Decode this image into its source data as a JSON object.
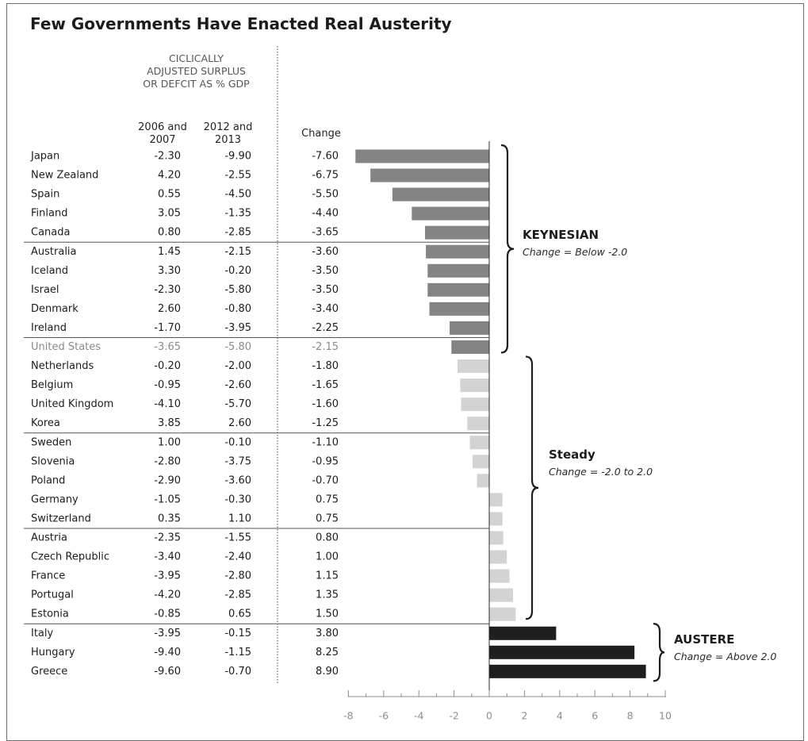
{
  "title": "Few Governments Have Enacted Real Austerity",
  "headers": {
    "group": [
      "CICLICALLY",
      "ADJUSTED SURPLUS",
      "OR DEFCIT AS % GDP"
    ],
    "col_2006": [
      "2006 and",
      "2007"
    ],
    "col_2012": [
      "2012  and",
      "2013"
    ],
    "col_change": "Change"
  },
  "braces": {
    "keynesian": {
      "title": "KEYNESIAN",
      "subtitle": "Change = Below -2.0"
    },
    "steady": {
      "title": "Steady",
      "subtitle": "Change = -2.0 to 2.0"
    },
    "austere": {
      "title": "AUSTERE",
      "subtitle": "Change = Above 2.0"
    }
  },
  "colors": {
    "keynesian": "#848484",
    "steady": "#d3d3d3",
    "austere": "#1f1f1f",
    "text": "#1c1c1c",
    "highlight_text": "#8a8a8a",
    "rule": "#555555"
  },
  "chart_data": {
    "type": "bar",
    "orientation": "horizontal",
    "xlim": [
      -8,
      10
    ],
    "xticks": [
      "-8",
      "-6",
      "-4",
      "-2",
      "0",
      "2",
      "4",
      "6",
      "8",
      "10"
    ],
    "rows": [
      {
        "country": "Japan",
        "v2006_2007": "-2.30",
        "v2012_2013": "-9.90",
        "change": "-7.60",
        "value": -7.6,
        "category": "keynesian"
      },
      {
        "country": "New Zealand",
        "v2006_2007": "4.20",
        "v2012_2013": "-2.55",
        "change": "-6.75",
        "value": -6.75,
        "category": "keynesian"
      },
      {
        "country": "Spain",
        "v2006_2007": "0.55",
        "v2012_2013": "-4.50",
        "change": "-5.50",
        "value": -5.5,
        "category": "keynesian"
      },
      {
        "country": "Finland",
        "v2006_2007": "3.05",
        "v2012_2013": "-1.35",
        "change": "-4.40",
        "value": -4.4,
        "category": "keynesian"
      },
      {
        "country": "Canada",
        "v2006_2007": "0.80",
        "v2012_2013": "-2.85",
        "change": "-3.65",
        "value": -3.65,
        "category": "keynesian"
      },
      {
        "country": "Australia",
        "v2006_2007": "1.45",
        "v2012_2013": "-2.15",
        "change": "-3.60",
        "value": -3.6,
        "category": "keynesian"
      },
      {
        "country": "Iceland",
        "v2006_2007": "3.30",
        "v2012_2013": "-0.20",
        "change": "-3.50",
        "value": -3.5,
        "category": "keynesian"
      },
      {
        "country": "Israel",
        "v2006_2007": "-2.30",
        "v2012_2013": "-5.80",
        "change": "-3.50",
        "value": -3.5,
        "category": "keynesian"
      },
      {
        "country": "Denmark",
        "v2006_2007": "2.60",
        "v2012_2013": "-0.80",
        "change": "-3.40",
        "value": -3.4,
        "category": "keynesian"
      },
      {
        "country": "Ireland",
        "v2006_2007": "-1.70",
        "v2012_2013": "-3.95",
        "change": "-2.25",
        "value": -2.25,
        "category": "keynesian"
      },
      {
        "country": "United States",
        "v2006_2007": "-3.65",
        "v2012_2013": "-5.80",
        "change": "-2.15",
        "value": -2.15,
        "category": "keynesian",
        "highlight": true
      },
      {
        "country": "Netherlands",
        "v2006_2007": "-0.20",
        "v2012_2013": "-2.00",
        "change": "-1.80",
        "value": -1.8,
        "category": "steady"
      },
      {
        "country": "Belgium",
        "v2006_2007": "-0.95",
        "v2012_2013": "-2.60",
        "change": "-1.65",
        "value": -1.65,
        "category": "steady"
      },
      {
        "country": "United Kingdom",
        "v2006_2007": "-4.10",
        "v2012_2013": "-5.70",
        "change": "-1.60",
        "value": -1.6,
        "category": "steady"
      },
      {
        "country": "Korea",
        "v2006_2007": "3.85",
        "v2012_2013": "2.60",
        "change": "-1.25",
        "value": -1.25,
        "category": "steady"
      },
      {
        "country": "Sweden",
        "v2006_2007": "1.00",
        "v2012_2013": "-0.10",
        "change": "-1.10",
        "value": -1.1,
        "category": "steady"
      },
      {
        "country": "Slovenia",
        "v2006_2007": "-2.80",
        "v2012_2013": "-3.75",
        "change": "-0.95",
        "value": -0.95,
        "category": "steady"
      },
      {
        "country": "Poland",
        "v2006_2007": "-2.90",
        "v2012_2013": "-3.60",
        "change": "-0.70",
        "value": -0.7,
        "category": "steady"
      },
      {
        "country": "Germany",
        "v2006_2007": "-1.05",
        "v2012_2013": "-0.30",
        "change": "0.75",
        "value": 0.75,
        "category": "steady"
      },
      {
        "country": "Switzerland",
        "v2006_2007": "0.35",
        "v2012_2013": "1.10",
        "change": "0.75",
        "value": 0.75,
        "category": "steady"
      },
      {
        "country": "Austria",
        "v2006_2007": "-2.35",
        "v2012_2013": "-1.55",
        "change": "0.80",
        "value": 0.8,
        "category": "steady"
      },
      {
        "country": "Czech Republic",
        "v2006_2007": "-3.40",
        "v2012_2013": "-2.40",
        "change": "1.00",
        "value": 1.0,
        "category": "steady"
      },
      {
        "country": "France",
        "v2006_2007": "-3.95",
        "v2012_2013": "-2.80",
        "change": "1.15",
        "value": 1.15,
        "category": "steady"
      },
      {
        "country": "Portugal",
        "v2006_2007": "-4.20",
        "v2012_2013": "-2.85",
        "change": "1.35",
        "value": 1.35,
        "category": "steady"
      },
      {
        "country": "Estonia",
        "v2006_2007": "-0.85",
        "v2012_2013": "0.65",
        "change": "1.50",
        "value": 1.5,
        "category": "steady"
      },
      {
        "country": "Italy",
        "v2006_2007": "-3.95",
        "v2012_2013": "-0.15",
        "change": "3.80",
        "value": 3.8,
        "category": "austere"
      },
      {
        "country": "Hungary",
        "v2006_2007": "-9.40",
        "v2012_2013": "-1.15",
        "change": "8.25",
        "value": 8.25,
        "category": "austere"
      },
      {
        "country": "Greece",
        "v2006_2007": "-9.60",
        "v2012_2013": "-0.70",
        "change": "8.90",
        "value": 8.9,
        "category": "austere"
      }
    ]
  }
}
